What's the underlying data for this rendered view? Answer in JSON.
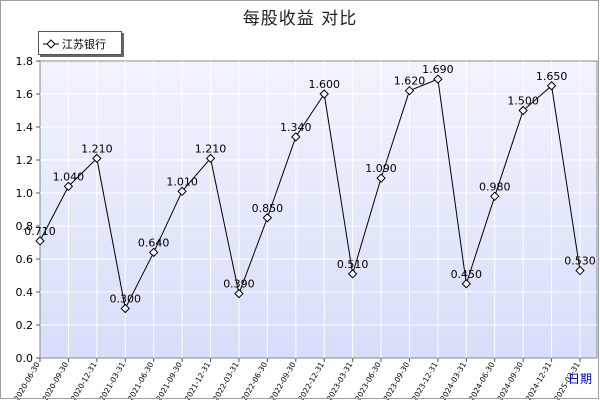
{
  "title": "每股收益  对比",
  "colors": {
    "plot_bg_top": "#f1f3fd",
    "plot_bg_bottom": "#d8defa",
    "grid": "#ffffff",
    "line": "#000000",
    "marker_fill": "#ffffff",
    "axis_text": "#000000",
    "xlabel_color": "#0000cc"
  },
  "chart_data": {
    "type": "line",
    "title": "每股收益  对比",
    "xlabel": "日期",
    "ylabel": "",
    "ylim": [
      0.0,
      1.8
    ],
    "yticks": [
      "0.0",
      "0.2",
      "0.4",
      "0.6",
      "0.8",
      "1.0",
      "1.2",
      "1.4",
      "1.6",
      "1.8"
    ],
    "grid": true,
    "legend_position": "top-left",
    "categories": [
      "2020-06-30",
      "2020-09-30",
      "2020-12-31",
      "2021-03-31",
      "2021-06-30",
      "2021-09-30",
      "2021-12-31",
      "2022-03-31",
      "2022-06-30",
      "2022-09-30",
      "2022-12-31",
      "2023-03-31",
      "2023-06-30",
      "2023-09-30",
      "2023-12-31",
      "2024-03-31",
      "2024-06-30",
      "2024-09-30",
      "2024-12-31",
      "2025-03-31"
    ],
    "series": [
      {
        "name": "江苏银行",
        "values": [
          0.71,
          1.04,
          1.21,
          0.3,
          0.64,
          1.01,
          1.21,
          0.39,
          0.85,
          1.34,
          1.6,
          0.51,
          1.09,
          1.62,
          1.69,
          0.45,
          0.98,
          1.5,
          1.65,
          0.53
        ],
        "labels": [
          "0.710",
          "1.040",
          "1.210",
          "0.300",
          "0.640",
          "1.010",
          "1.210",
          "0.390",
          "0.850",
          "1.340",
          "1.600",
          "0.510",
          "1.090",
          "1.620",
          "1.690",
          "0.450",
          "0.980",
          "1.500",
          "1.650",
          "0.530"
        ]
      }
    ]
  }
}
